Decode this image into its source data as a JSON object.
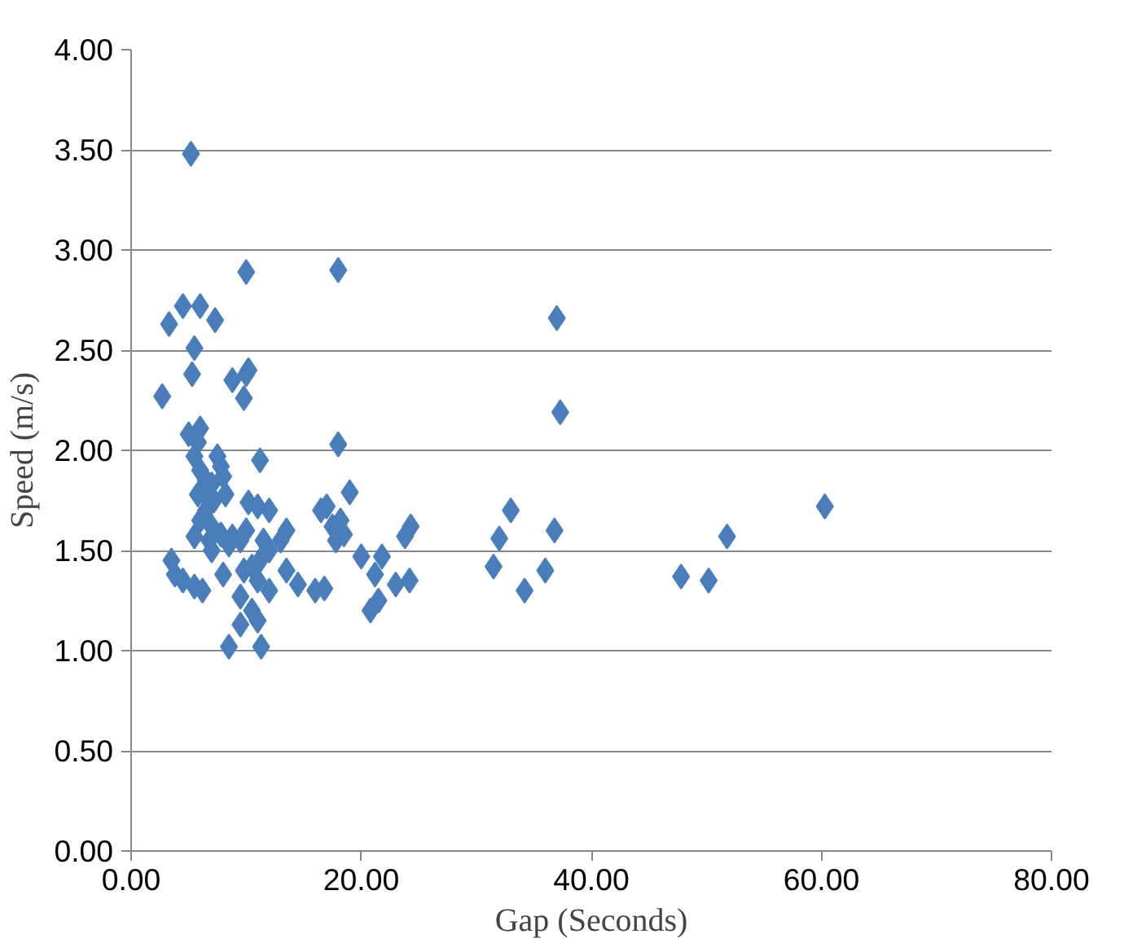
{
  "chart_data": {
    "type": "scatter",
    "xlabel": "Gap (Seconds)",
    "ylabel": "Speed (m/s)",
    "marker": "diamond",
    "grid": "y",
    "xlim": [
      0,
      80
    ],
    "xticks": [
      {
        "value": 0,
        "label": "0.00"
      },
      {
        "value": 20,
        "label": "20.00"
      },
      {
        "value": 40,
        "label": "40.00"
      },
      {
        "value": 60,
        "label": "60.00"
      },
      {
        "value": 80,
        "label": "80.00"
      }
    ],
    "ylim": [
      0,
      4
    ],
    "yticks": [
      {
        "value": 0,
        "label": "0.00"
      },
      {
        "value": 0.5,
        "label": "0.50"
      },
      {
        "value": 1,
        "label": "1.00"
      },
      {
        "value": 1.5,
        "label": "1.50"
      },
      {
        "value": 2,
        "label": "2.00"
      },
      {
        "value": 2.5,
        "label": "2.50"
      },
      {
        "value": 3,
        "label": "3.00"
      },
      {
        "value": 3.5,
        "label": "3.50"
      },
      {
        "value": 4,
        "label": "4.00"
      }
    ],
    "series": [
      {
        "color": "#4a7ebb",
        "x": [
          5.2,
          10.0,
          18.0,
          37.0,
          37.3,
          18.0,
          60.3,
          51.8,
          47.8,
          50.2,
          2.7,
          3.3,
          4.5,
          6.0,
          7.3,
          5.5,
          5.3,
          8.8,
          10.2,
          10.0,
          9.8,
          11.2,
          5.0,
          6.0,
          5.8,
          5.5,
          7.5,
          7.8,
          6.0,
          6.5,
          8.0,
          7.0,
          5.8,
          6.5,
          7.2,
          8.2,
          6.5,
          6.0,
          7.0,
          10.2,
          11.0,
          12.0,
          10.0,
          9.5,
          8.8,
          7.8,
          5.5,
          6.8,
          8.5,
          7.0,
          11.5,
          12.0,
          13.0,
          13.5,
          11.2,
          10.5,
          9.8,
          3.5,
          3.8,
          4.5,
          5.5,
          6.2,
          8.0,
          9.5,
          11.0,
          12.0,
          10.5,
          11.0,
          9.5,
          8.5,
          11.3,
          13.5,
          14.5,
          16.0,
          16.8,
          16.5,
          17.0,
          17.5,
          17.8,
          18.5,
          18.2,
          19.0,
          20.0,
          20.8,
          21.5,
          21.2,
          21.8,
          23.0,
          24.2,
          23.8,
          24.3,
          31.5,
          32.0,
          33.0,
          34.2,
          36.0,
          36.8
        ],
        "values": [
          3.48,
          2.89,
          2.9,
          2.66,
          2.19,
          2.03,
          1.72,
          1.57,
          1.37,
          1.35,
          2.27,
          2.63,
          2.72,
          2.72,
          2.65,
          2.51,
          2.38,
          2.35,
          2.4,
          2.38,
          2.26,
          1.95,
          2.08,
          2.11,
          2.04,
          1.97,
          1.97,
          1.92,
          1.9,
          1.85,
          1.87,
          1.83,
          1.78,
          1.77,
          1.75,
          1.78,
          1.7,
          1.65,
          1.62,
          1.74,
          1.72,
          1.7,
          1.6,
          1.55,
          1.57,
          1.58,
          1.57,
          1.55,
          1.53,
          1.5,
          1.55,
          1.5,
          1.55,
          1.6,
          1.45,
          1.42,
          1.4,
          1.45,
          1.38,
          1.35,
          1.32,
          1.3,
          1.38,
          1.27,
          1.35,
          1.3,
          1.2,
          1.15,
          1.13,
          1.02,
          1.02,
          1.4,
          1.33,
          1.3,
          1.31,
          1.7,
          1.72,
          1.62,
          1.55,
          1.58,
          1.65,
          1.79,
          1.47,
          1.2,
          1.25,
          1.38,
          1.47,
          1.33,
          1.35,
          1.57,
          1.62,
          1.42,
          1.56,
          1.7,
          1.3,
          1.4,
          1.6
        ]
      }
    ]
  }
}
